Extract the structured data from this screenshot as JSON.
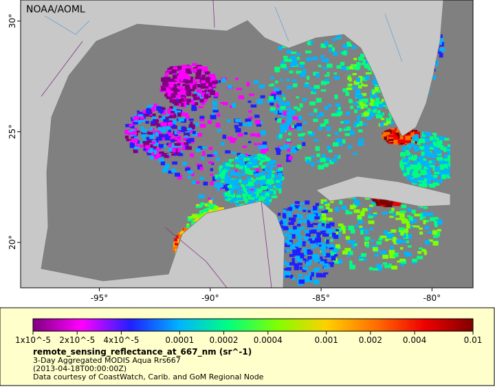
{
  "map": {
    "credit": "NOAA/AOML",
    "xlim": [
      -98.55,
      -78.15
    ],
    "ylim": [
      17.95,
      30.95
    ],
    "xticks": [
      {
        "value": -95,
        "label": "-95°"
      },
      {
        "value": -90,
        "label": "-90°"
      },
      {
        "value": -85,
        "label": "-85°"
      },
      {
        "value": -80,
        "label": "-80°"
      }
    ],
    "yticks": [
      {
        "value": 20,
        "label": "20°"
      },
      {
        "value": 25,
        "label": "25°"
      },
      {
        "value": 30,
        "label": "30°"
      }
    ]
  },
  "legend": {
    "scale": "log",
    "range": [
      1e-05,
      0.01
    ],
    "colors": [
      "#7f007f",
      "#ff00ff",
      "#2020ff",
      "#00b4ff",
      "#00ff80",
      "#80ff00",
      "#ffd000",
      "#ff7000",
      "#f00000",
      "#800000"
    ],
    "ticks": [
      {
        "value": 1e-05,
        "label": "1x10^-5"
      },
      {
        "value": 2e-05,
        "label": "2x10^-5"
      },
      {
        "value": 4e-05,
        "label": "4x10^-5"
      },
      0.0001,
      0.0002,
      0.0004,
      0.001,
      0.002,
      0.004,
      0.01
    ],
    "title": "remote_sensing_reflectance_at_667_nm (sr^-1)",
    "subtitle": "3-Day Aggregated MODIS Aqua Rrs667",
    "date": "(2013-04-18T00:00:00Z)",
    "credit": "Data courtesy of CoastWatch, Carib. and GoM Regional Node"
  }
}
